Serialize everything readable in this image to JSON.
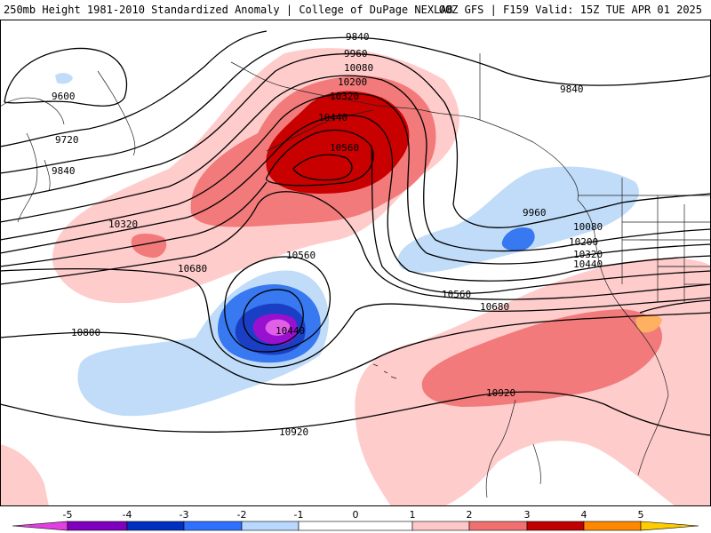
{
  "header": {
    "title": "250mb Height 1981-2010 Standardized Anomaly | College of DuPage NEXLAB",
    "run_info": "00Z GFS | F159 Valid: 15Z TUE APR 01 2025"
  },
  "contours": {
    "labels": [
      {
        "id": "c9840a",
        "text": "9840"
      },
      {
        "id": "c9960a",
        "text": "9960"
      },
      {
        "id": "c10080a",
        "text": "10080"
      },
      {
        "id": "c10200a",
        "text": "10200"
      },
      {
        "id": "c10320a",
        "text": "10320"
      },
      {
        "id": "c10440a",
        "text": "10440"
      },
      {
        "id": "c10560a",
        "text": "10560"
      },
      {
        "id": "c9600",
        "text": "9600"
      },
      {
        "id": "c9720",
        "text": "9720"
      },
      {
        "id": "c9840b",
        "text": "9840"
      },
      {
        "id": "c10320b",
        "text": "10320"
      },
      {
        "id": "c10680a",
        "text": "10680"
      },
      {
        "id": "c10800",
        "text": "10800"
      },
      {
        "id": "c10560b",
        "text": "10560"
      },
      {
        "id": "c10440b",
        "text": "10440"
      },
      {
        "id": "c9840c",
        "text": "9840"
      },
      {
        "id": "c9960b",
        "text": "9960"
      },
      {
        "id": "c10080b",
        "text": "10080"
      },
      {
        "id": "c10200b",
        "text": "10200"
      },
      {
        "id": "c10320c",
        "text": "10320"
      },
      {
        "id": "c10440c",
        "text": "10440"
      },
      {
        "id": "c10560c",
        "text": "10560"
      },
      {
        "id": "c10680b",
        "text": "10680"
      },
      {
        "id": "c10920a",
        "text": "10920"
      },
      {
        "id": "c10920b",
        "text": "10920"
      }
    ]
  },
  "colorbar": {
    "ticks": [
      "-5",
      "-4",
      "-3",
      "-2",
      "-1",
      "0",
      "1",
      "2",
      "3",
      "4",
      "5"
    ],
    "colors": {
      "m5": "#e040e0",
      "m4": "#8000c0",
      "m3": "#0030c0",
      "m2": "#3070ff",
      "m1": "#b8d8ff",
      "z": "#ffffff",
      "p1": "#ffc8c8",
      "p2": "#f07070",
      "p3": "#c00000",
      "p4": "#ff8800",
      "p5": "#ffcc00"
    }
  },
  "colors": {
    "pos1": "#ffcccc",
    "pos2": "#f27a7a",
    "pos3": "#c80000",
    "neg1": "#c0dcf8",
    "neg2": "#3878f0",
    "neg3": "#1a3fc4",
    "neg4": "#9a10d0",
    "neg5": "#e060e8"
  }
}
